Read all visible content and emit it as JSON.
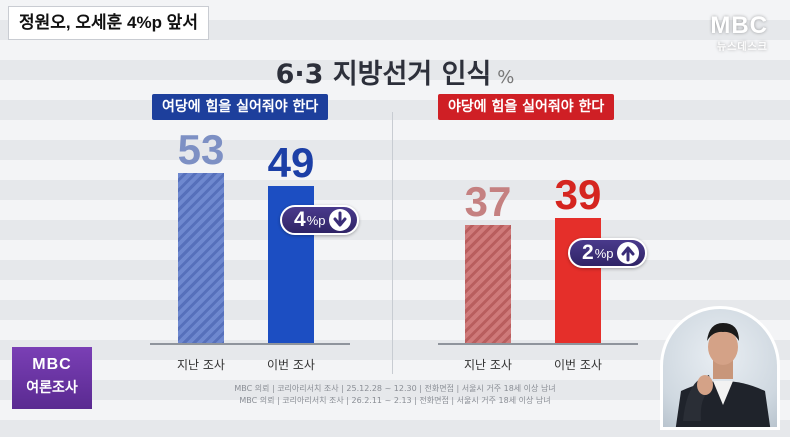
{
  "headline": "정원오, 오세훈 4%p 앞서",
  "logo": {
    "main": "MBC",
    "sub": "뉴스데스크"
  },
  "title": "6·3 지방선거 인식",
  "title_unit": "%",
  "badge": {
    "line1": "MBC",
    "line2": "여론조사"
  },
  "source_lines": [
    "MBC 의뢰 | 코리아리서치 조사 | 25.12.28 ~ 12.30 | 전화면접 | 서울시 거주 18세 이상 남녀",
    "MBC 의뢰 | 코리아리서치 조사 | 26.2.11 ~ 2.13 | 전화면접 | 서울시 거주 18세 이상 남녀"
  ],
  "colors": {
    "ruling": "#1c4ec2",
    "opposition": "#e52f2a",
    "badge": "#6a35a3",
    "change_pill": "#3a2d78"
  },
  "icons": {
    "down": "arrow-down-icon",
    "up": "arrow-up-icon"
  },
  "chart_data": [
    {
      "type": "bar",
      "title": "여당에 힘을 실어줘야 한다",
      "categories": [
        "지난 조사",
        "이번 조사"
      ],
      "values": [
        53,
        49
      ],
      "ylim": [
        0,
        60
      ],
      "change": {
        "value": "4",
        "unit": "%p",
        "direction": "down"
      }
    },
    {
      "type": "bar",
      "title": "야당에 힘을 실어줘야 한다",
      "categories": [
        "지난 조사",
        "이번 조사"
      ],
      "values": [
        37,
        39
      ],
      "ylim": [
        0,
        60
      ],
      "change": {
        "value": "2",
        "unit": "%p",
        "direction": "up"
      }
    }
  ]
}
